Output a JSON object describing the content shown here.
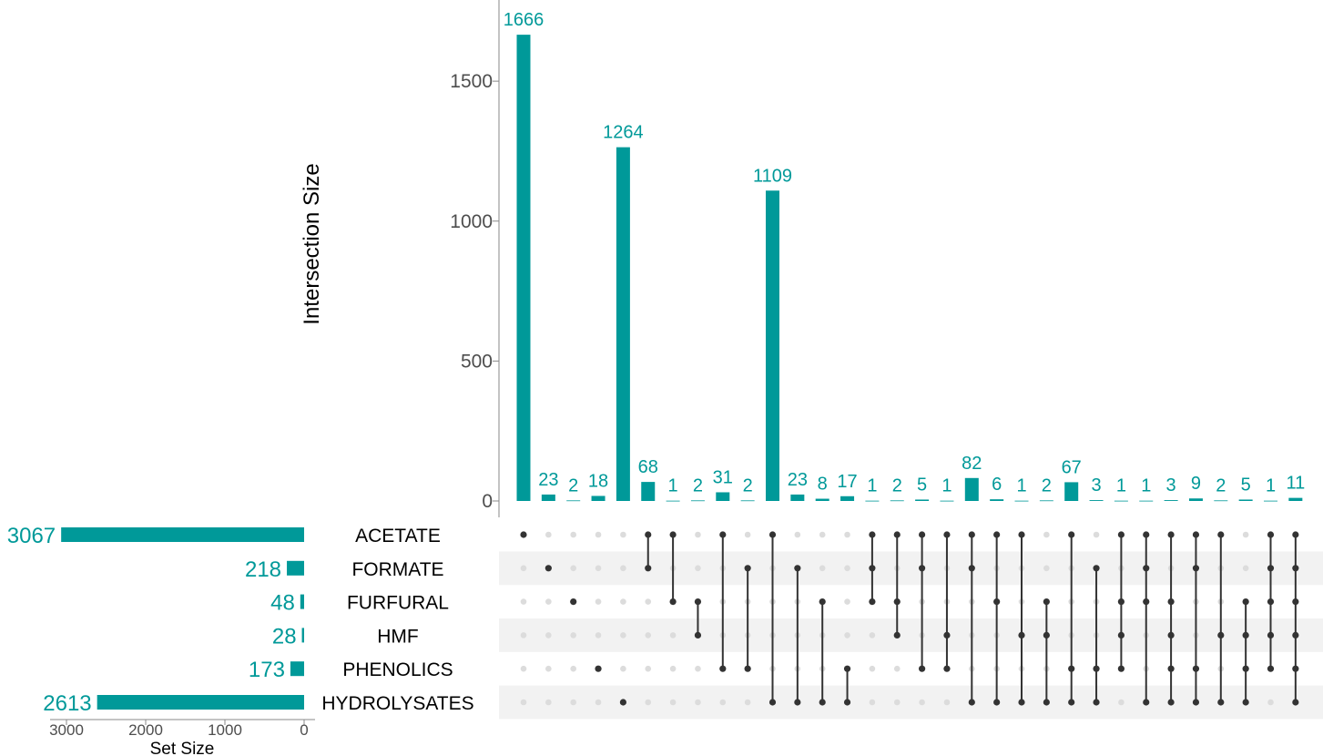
{
  "colors": {
    "bar": "#009999",
    "dot_on": "#333333",
    "dot_off": "#dcdcdc",
    "band": "#f2f2f2",
    "axis": "#888888"
  },
  "chart_data": {
    "type": "upset",
    "ylabel": "Intersection Size",
    "xlabel_sets": "Set Size",
    "y_ticks": [
      0,
      500,
      1000,
      1500
    ],
    "ylim": [
      0,
      1720
    ],
    "set_size_ticks": [
      3000,
      2000,
      1000,
      0
    ],
    "set_size_lim": [
      0,
      3150
    ],
    "sets": [
      {
        "name": "ACETATE",
        "size": 3067
      },
      {
        "name": "FORMATE",
        "size": 218
      },
      {
        "name": "FURFURAL",
        "size": 48
      },
      {
        "name": "HMF",
        "size": 28
      },
      {
        "name": "PHENOLICS",
        "size": 173
      },
      {
        "name": "HYDROLYSATES",
        "size": 2613
      }
    ],
    "intersections": [
      {
        "value": 1666,
        "sets": [
          "ACETATE"
        ]
      },
      {
        "value": 23,
        "sets": [
          "FORMATE"
        ]
      },
      {
        "value": 2,
        "sets": [
          "FURFURAL"
        ]
      },
      {
        "value": 18,
        "sets": [
          "PHENOLICS"
        ]
      },
      {
        "value": 1264,
        "sets": [
          "HYDROLYSATES"
        ]
      },
      {
        "value": 68,
        "sets": [
          "ACETATE",
          "FORMATE"
        ]
      },
      {
        "value": 1,
        "sets": [
          "ACETATE",
          "FURFURAL"
        ]
      },
      {
        "value": 2,
        "sets": [
          "FURFURAL",
          "HMF"
        ]
      },
      {
        "value": 31,
        "sets": [
          "ACETATE",
          "PHENOLICS"
        ]
      },
      {
        "value": 2,
        "sets": [
          "FORMATE",
          "PHENOLICS"
        ]
      },
      {
        "value": 1109,
        "sets": [
          "ACETATE",
          "HYDROLYSATES"
        ]
      },
      {
        "value": 23,
        "sets": [
          "FORMATE",
          "HYDROLYSATES"
        ]
      },
      {
        "value": 8,
        "sets": [
          "FURFURAL",
          "HYDROLYSATES"
        ]
      },
      {
        "value": 17,
        "sets": [
          "PHENOLICS",
          "HYDROLYSATES"
        ]
      },
      {
        "value": 1,
        "sets": [
          "ACETATE",
          "FORMATE",
          "FURFURAL"
        ]
      },
      {
        "value": 2,
        "sets": [
          "ACETATE",
          "FURFURAL",
          "HMF"
        ]
      },
      {
        "value": 5,
        "sets": [
          "ACETATE",
          "FORMATE",
          "PHENOLICS"
        ]
      },
      {
        "value": 1,
        "sets": [
          "ACETATE",
          "HMF",
          "PHENOLICS"
        ]
      },
      {
        "value": 82,
        "sets": [
          "ACETATE",
          "FORMATE",
          "HYDROLYSATES"
        ]
      },
      {
        "value": 6,
        "sets": [
          "ACETATE",
          "FURFURAL",
          "HYDROLYSATES"
        ]
      },
      {
        "value": 1,
        "sets": [
          "ACETATE",
          "HMF",
          "HYDROLYSATES"
        ]
      },
      {
        "value": 2,
        "sets": [
          "FURFURAL",
          "HMF",
          "HYDROLYSATES"
        ]
      },
      {
        "value": 67,
        "sets": [
          "ACETATE",
          "PHENOLICS",
          "HYDROLYSATES"
        ]
      },
      {
        "value": 3,
        "sets": [
          "FORMATE",
          "PHENOLICS",
          "HYDROLYSATES"
        ]
      },
      {
        "value": 1,
        "sets": [
          "ACETATE",
          "FURFURAL",
          "HMF",
          "PHENOLICS"
        ]
      },
      {
        "value": 1,
        "sets": [
          "ACETATE",
          "FORMATE",
          "FURFURAL",
          "HYDROLYSATES"
        ]
      },
      {
        "value": 3,
        "sets": [
          "ACETATE",
          "FURFURAL",
          "HMF",
          "PHENOLICS",
          "HYDROLYSATES"
        ]
      },
      {
        "value": 9,
        "sets": [
          "ACETATE",
          "FORMATE",
          "PHENOLICS",
          "HYDROLYSATES"
        ]
      },
      {
        "value": 2,
        "sets": [
          "ACETATE",
          "HMF",
          "HYDROLYSATES"
        ]
      },
      {
        "value": 5,
        "sets": [
          "FURFURAL",
          "HMF",
          "PHENOLICS",
          "HYDROLYSATES"
        ]
      },
      {
        "value": 1,
        "sets": [
          "ACETATE",
          "FORMATE",
          "FURFURAL",
          "HMF",
          "PHENOLICS"
        ]
      },
      {
        "value": 11,
        "sets": [
          "ACETATE",
          "FORMATE",
          "FURFURAL",
          "HMF",
          "PHENOLICS",
          "HYDROLYSATES"
        ]
      }
    ]
  }
}
